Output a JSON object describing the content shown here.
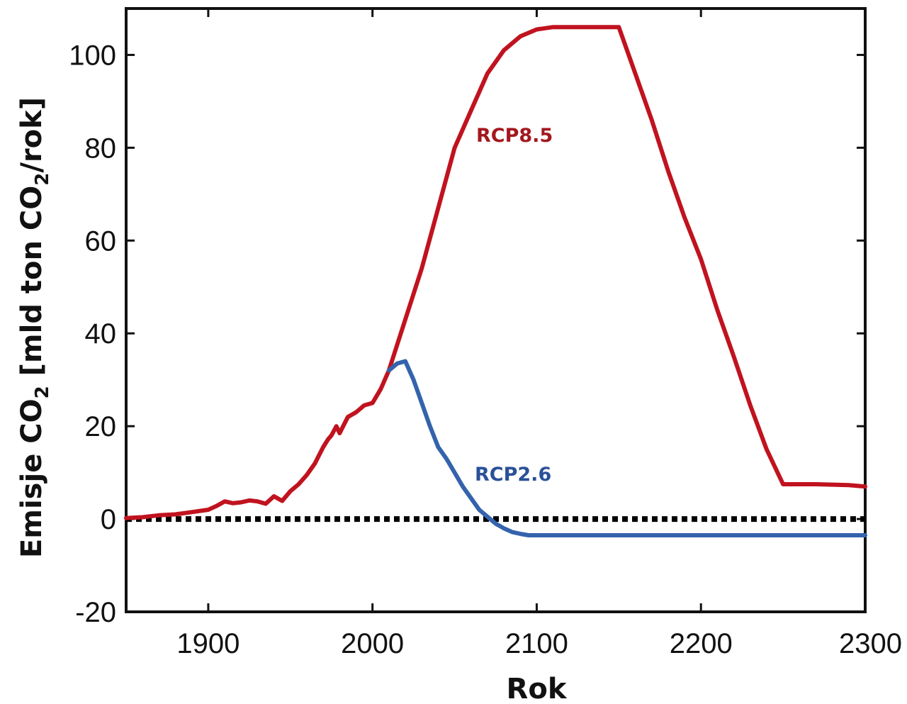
{
  "chart_data": {
    "type": "line",
    "title": "",
    "xlabel": "Rok",
    "ylabel": {
      "text": "Emisje CO",
      "sub": "2",
      "unit_open": " [mld ton CO",
      "unit_sub": "2",
      "unit_close": "/rok]"
    },
    "xlim": [
      1850,
      2300
    ],
    "ylim": [
      -20,
      110
    ],
    "x_ticks": [
      1900,
      2000,
      2100,
      2200,
      2300
    ],
    "y_ticks": [
      -20,
      0,
      20,
      40,
      60,
      80,
      100
    ],
    "zero_line": {
      "value": 0,
      "style": "dotted",
      "color": "#000000"
    },
    "grid": false,
    "series": [
      {
        "name": "RCP8.5",
        "label": "RCP8.5",
        "color": "#c0131f",
        "label_color": "#a3181e",
        "x": [
          1850,
          1860,
          1870,
          1880,
          1890,
          1900,
          1905,
          1910,
          1915,
          1920,
          1925,
          1930,
          1935,
          1940,
          1945,
          1950,
          1955,
          1960,
          1965,
          1970,
          1973,
          1975,
          1978,
          1980,
          1985,
          1990,
          1995,
          2000,
          2005,
          2010,
          2020,
          2030,
          2040,
          2050,
          2060,
          2070,
          2080,
          2090,
          2100,
          2110,
          2120,
          2130,
          2140,
          2150,
          2160,
          2170,
          2180,
          2190,
          2200,
          2210,
          2220,
          2230,
          2240,
          2250,
          2260,
          2270,
          2280,
          2290,
          2300
        ],
        "y": [
          0.2,
          0.4,
          0.8,
          1.0,
          1.5,
          2.0,
          2.8,
          3.8,
          3.4,
          3.6,
          4.0,
          3.8,
          3.3,
          4.9,
          3.9,
          6.0,
          7.5,
          9.5,
          12.0,
          15.5,
          17.2,
          18.0,
          20.0,
          18.5,
          22.0,
          23.0,
          24.5,
          25.0,
          28.0,
          32.0,
          43.0,
          54.0,
          67.0,
          80.0,
          88.0,
          96.0,
          101.0,
          104.0,
          105.5,
          106.0,
          106.0,
          106.0,
          106.0,
          106.0,
          96.0,
          86.0,
          75.0,
          65.0,
          56.0,
          45.0,
          35.0,
          24.5,
          15.0,
          7.5,
          7.5,
          7.5,
          7.4,
          7.3,
          7.0
        ]
      },
      {
        "name": "RCP2.6",
        "label": "RCP2.6",
        "color": "#3463ac",
        "label_color": "#2a5198",
        "x": [
          2010,
          2015,
          2020,
          2025,
          2030,
          2035,
          2040,
          2045,
          2050,
          2055,
          2060,
          2065,
          2070,
          2075,
          2080,
          2085,
          2090,
          2095,
          2100,
          2150,
          2200,
          2250,
          2300
        ],
        "y": [
          32.0,
          33.5,
          34.0,
          30.0,
          25.0,
          20.0,
          15.5,
          13.0,
          10.0,
          7.0,
          4.5,
          2.0,
          0.5,
          -1.0,
          -2.0,
          -2.8,
          -3.2,
          -3.5,
          -3.5,
          -3.5,
          -3.5,
          -3.5,
          -3.5
        ]
      }
    ]
  }
}
